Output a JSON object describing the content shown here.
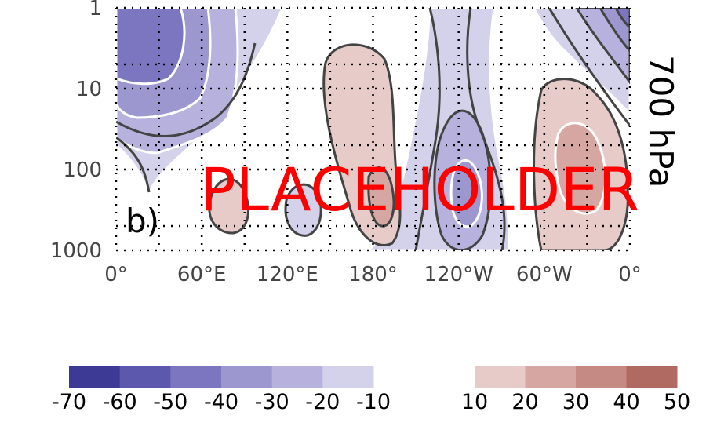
{
  "chart_data": {
    "type": "contour",
    "panel_label": "b)",
    "side_label": "700 hPa",
    "watermark": "PLACEHOLDER",
    "x_ticks": [
      "0°",
      "60°E",
      "120°E",
      "180°",
      "120°W",
      "60°W",
      "0°"
    ],
    "y_ticks": [
      "1",
      "10",
      "100",
      "1000"
    ],
    "y_scale": "log",
    "y_range": [
      1000,
      1
    ],
    "grid": true,
    "colorbar_negative": {
      "ticks": [
        "-70",
        "-60",
        "-50",
        "-40",
        "-30",
        "-20",
        "-10"
      ],
      "colors": [
        "#3c3a94",
        "#5c58ad",
        "#7b76bf",
        "#9c97cf",
        "#b7b2dd",
        "#d4d1ea"
      ]
    },
    "colorbar_positive": {
      "ticks": [
        "10",
        "20",
        "30",
        "40",
        "50"
      ],
      "colors": [
        "#e6cbc8",
        "#d6a7a2",
        "#c48a83",
        "#b16a61"
      ]
    }
  }
}
